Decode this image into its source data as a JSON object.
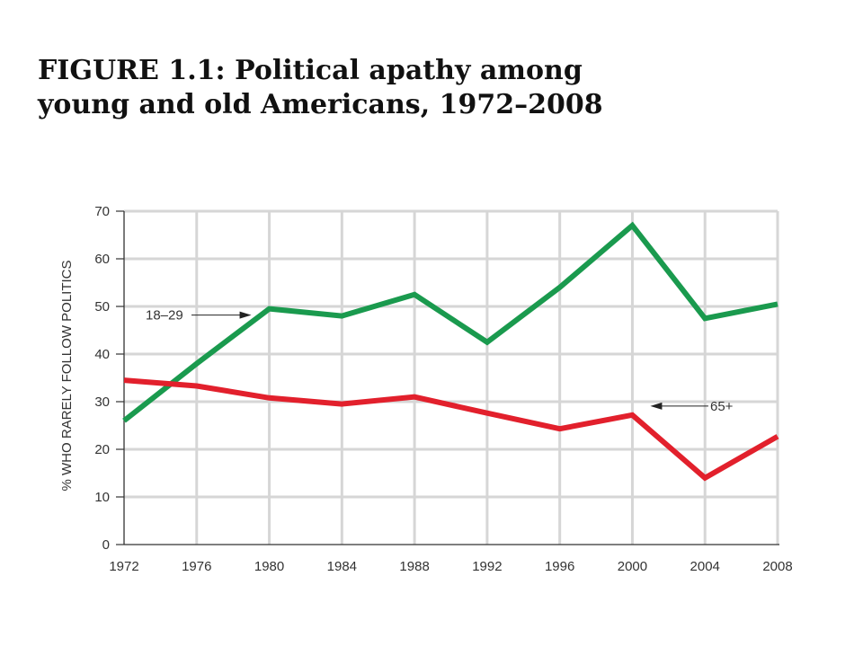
{
  "title_lines": [
    "FIGURE 1.1: Political apathy among",
    "young and old Americans, 1972–2008"
  ],
  "chart_data": {
    "type": "line",
    "x": [
      1972,
      1976,
      1980,
      1984,
      1988,
      1992,
      1996,
      2000,
      2004,
      2008
    ],
    "xlim": [
      1972,
      2008
    ],
    "ylim": [
      0,
      70
    ],
    "yticks": [
      0,
      10,
      20,
      30,
      40,
      50,
      60,
      70
    ],
    "xlabel": "",
    "ylabel": "% WHO RARELY FOLLOW POLITICS",
    "grid": true,
    "series": [
      {
        "name": "18–29",
        "color": "#1a9a4e",
        "values": [
          26,
          38,
          49.5,
          48,
          52.5,
          42.5,
          54,
          67,
          47.5,
          50.5
        ],
        "label_anchor_x": 1980
      },
      {
        "name": "65+",
        "color": "#e2202c",
        "values": [
          34.5,
          33.3,
          30.8,
          29.5,
          31,
          27.6,
          24.3,
          27.2,
          14,
          22.7
        ],
        "label_anchor_x": 2000
      }
    ]
  }
}
